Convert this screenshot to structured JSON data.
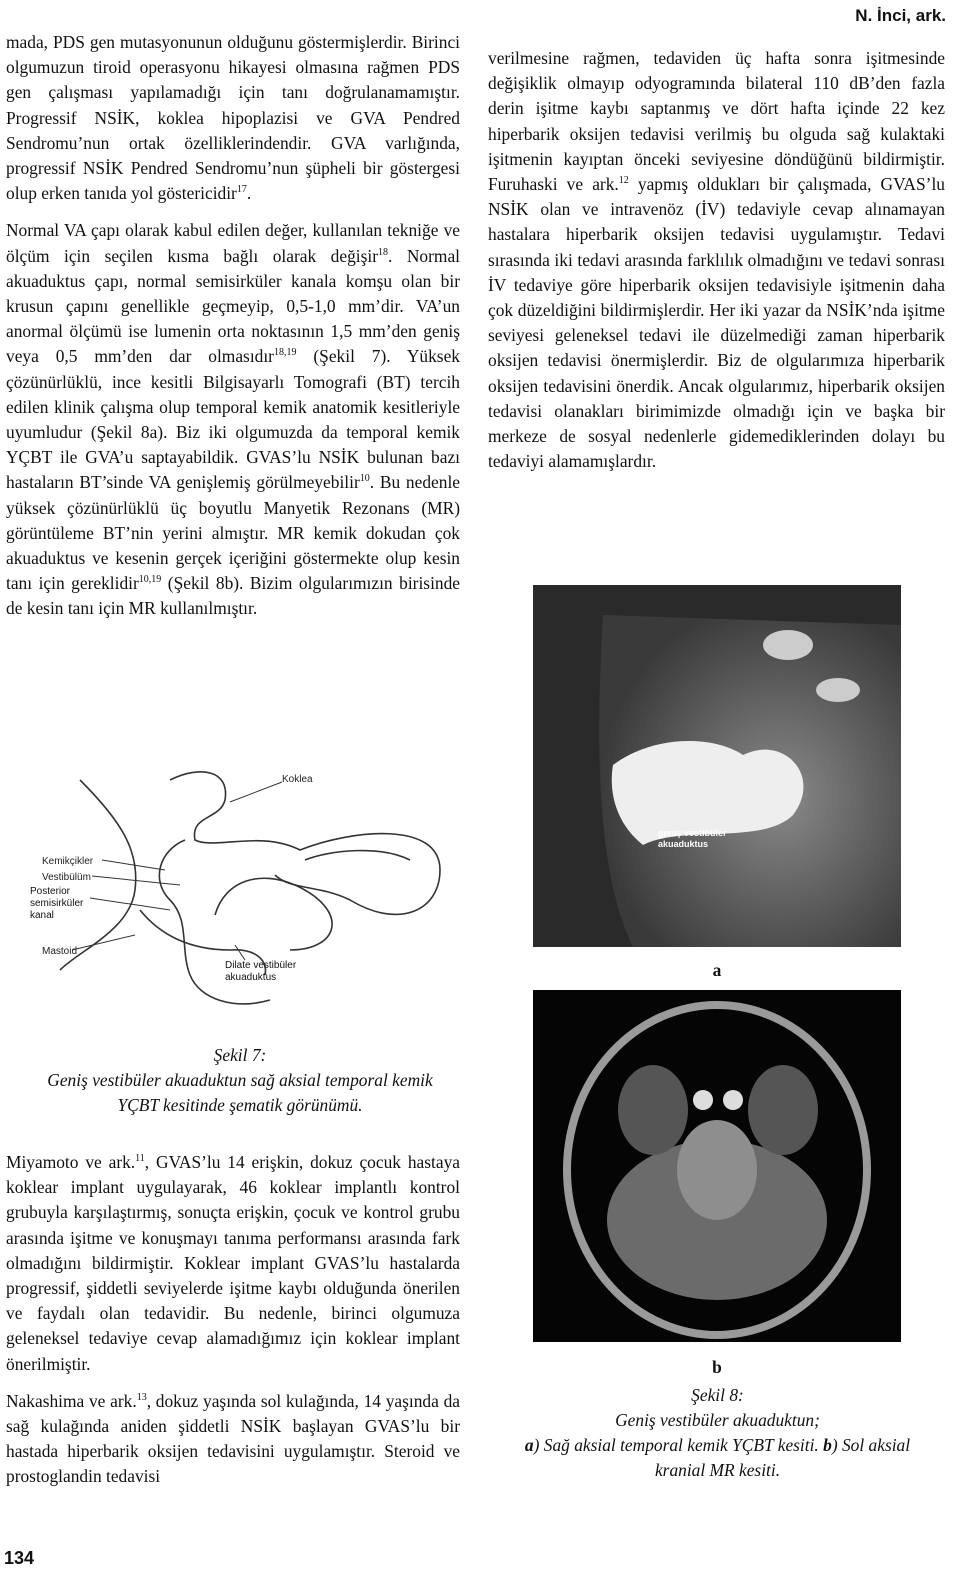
{
  "header": {
    "running_title": "N. İnci, ark."
  },
  "left_column": {
    "paragraphs": [
      {
        "segments": [
          {
            "text": "mada, PDS gen mutasyonunun olduğunu göstermişlerdir. Birinci olgumuzun tiroid operasyonu hikayesi olmasına rağmen PDS gen çalışması yapılamadığı için tanı doğrulanamamıştır. Progressif NSİK, koklea hipoplazisi ve GVA Pendred Sendromu’nun ortak özelliklerindendir. GVA varlığında, progressif NSİK Pendred Sendromu’nun şüpheli bir göstergesi olup erken tanıda yol göstericidir"
          },
          {
            "sup": "17"
          },
          {
            "text": "."
          }
        ]
      },
      {
        "segments": [
          {
            "text": "Normal VA çapı olarak kabul edilen değer, kullanılan tekniğe ve ölçüm için seçilen kısma bağlı olarak değişir"
          },
          {
            "sup": "18"
          },
          {
            "text": ". Normal akuaduktus çapı, normal semisirküler kanala komşu olan bir krusun çapını genellikle geçmeyip, 0,5-1,0 mm’dir. VA’un anormal ölçümü ise lumenin orta noktasının 1,5 mm’den geniş veya 0,5 mm’den dar olmasıdır"
          },
          {
            "sup": "18,19"
          },
          {
            "text": " (Şekil 7). Yüksek çözünürlüklü, ince kesitli Bilgisayarlı Tomografi (BT) tercih edilen klinik çalışma olup temporal kemik anatomik kesitleriyle uyumludur (Şekil 8a). Biz iki olgumuzda da temporal kemik YÇBT ile GVA’u saptayabildik. GVAS’lu NSİK bulunan bazı hastaların BT’sinde VA genişlemiş görülmeyebilir"
          },
          {
            "sup": "10"
          },
          {
            "text": ". Bu nedenle yüksek çözünürlüklü üç boyutlu Manyetik Rezonans (MR) görüntüleme BT’nin yerini almıştır. MR kemik dokudan çok akuaduktus ve kesenin gerçek içeriğini göstermekte olup kesin tanı için gereklidir"
          },
          {
            "sup": "10,19"
          },
          {
            "text": " (Şekil 8b). Bizim olgularımızın birisinde de kesin tanı için MR kullanılmıştır."
          }
        ]
      }
    ],
    "paragraphs_after_figure": [
      {
        "segments": [
          {
            "text": "Miyamoto ve ark."
          },
          {
            "sup": "11"
          },
          {
            "text": ", GVAS’lu 14 erişkin, dokuz çocuk hastaya koklear implant uygulayarak, 46 koklear implantlı kontrol grubuyla karşılaştırmış, sonuçta erişkin, çocuk ve kontrol grubu arasında işitme ve konuşmayı tanıma performansı arasında fark olmadığını bildirmiştir. Koklear implant GVAS’lu hastalarda progressif, şiddetli seviyelerde işitme kaybı olduğunda önerilen ve faydalı olan tedavidir. Bu nedenle, birinci olgumuza geleneksel tedaviye cevap alamadığımız için koklear implant önerilmiştir."
          }
        ]
      },
      {
        "segments": [
          {
            "text": "Nakashima ve ark."
          },
          {
            "sup": "13"
          },
          {
            "text": ", dokuz yaşında sol kulağında, 14 yaşında da sağ kulağında aniden şiddetli NSİK başlayan GVAS’lu bir hastada hiperbarik oksijen tedavisini uygulamıştır. Steroid ve prostoglandin tedavisi"
          }
        ]
      }
    ]
  },
  "right_column": {
    "paragraphs": [
      {
        "segments": [
          {
            "text": "verilmesine rağmen, tedaviden üç hafta sonra işitmesinde değişiklik olmayıp odyogramında bilateral 110 dB’den fazla derin işitme kaybı saptanmış ve dört hafta içinde 22 kez hiperbarik oksijen tedavisi verilmiş bu olguda sağ kulaktaki işitmenin kayıptan önceki seviyesine döndüğünü bildirmiştir. Furuhaski ve ark."
          },
          {
            "sup": "12"
          },
          {
            "text": " yapmış oldukları bir çalışmada, GVAS’lu NSİK olan ve intravenöz (İV) tedaviyle cevap alınamayan hastalara hiperbarik oksijen tedavisi uygulamıştır. Tedavi sırasında iki tedavi arasında farklılık olmadığını ve tedavi sonrası İV tedaviye göre hiperbarik oksijen tedavisiyle işitmenin daha çok düzeldiğini bildirmişlerdir. Her iki yazar da NSİK’nda işitme seviyesi geleneksel tedavi ile düzelmediği zaman hiperbarik oksijen tedavisi önermişlerdir. Biz de olgularımıza hiperbarik oksijen tedavisini önerdik. Ancak olgularımız, hiperbarik oksijen tedavisi olanakları birimimizde olmadığı için ve başka bir merkeze de sosyal nedenlerle gidemediklerinden dolayı bu tedaviyi alamamışlardır."
          }
        ]
      }
    ]
  },
  "figure7": {
    "labels": [
      "Koklea",
      "Kemikçikler",
      "Vestibülüm",
      "Posterior semisirküler kanal",
      "Mastoid",
      "Dilate vestibüler akuaduktus"
    ],
    "caption_title": "Şekil 7:",
    "caption_text": "Geniş vestibüler akuaduktun sağ aksial temporal kemik YÇBT kesitinde şematik görünümü."
  },
  "figure8": {
    "image_a_label": "geniş vestibüler akuaduktus",
    "panel_a": "a",
    "panel_b": "b",
    "caption_title": "Şekil 8:",
    "caption_line1": "Geniş vestibüler akuaduktun;",
    "caption_line2": [
      {
        "bold": "a"
      },
      {
        "text": ") Sağ aksial temporal kemik YÇBT kesiti. "
      },
      {
        "bold": "b"
      },
      {
        "text": ") Sol aksial kranial MR kesiti."
      }
    ]
  },
  "footer": {
    "page_number": "134"
  }
}
